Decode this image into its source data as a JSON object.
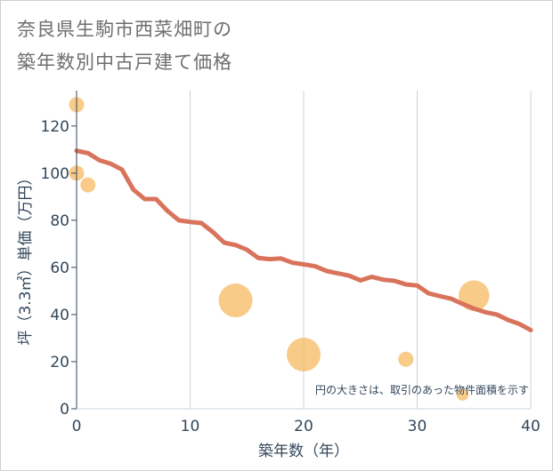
{
  "title": {
    "line1": "奈良県生駒市西菜畑町の",
    "line2": "築年数別中古戸建て価格"
  },
  "chart_data": {
    "type": "scatter",
    "xlabel": "築年数（年）",
    "ylabel": "坪（3.3㎡）単価（万円）",
    "xlim": [
      0,
      40
    ],
    "ylim": [
      0,
      135
    ],
    "xticks": [
      0,
      10,
      20,
      30,
      40
    ],
    "yticks": [
      0,
      20,
      40,
      60,
      80,
      100,
      120
    ],
    "grid": "vertical",
    "note": "円の大きさは、取引のあった物件面積を示す",
    "colors": {
      "line": "#d9735c",
      "bubble": "#f5b961",
      "grid": "#c9d4dc",
      "axis_text": "#33475b"
    },
    "trend": {
      "name": "trend",
      "x": [
        0,
        1,
        2,
        3,
        4,
        5,
        6,
        7,
        8,
        9,
        10,
        11,
        12,
        13,
        14,
        15,
        16,
        17,
        18,
        19,
        20,
        21,
        22,
        23,
        24,
        25,
        26,
        27,
        28,
        29,
        30,
        31,
        32,
        33,
        34,
        35,
        36,
        37,
        38,
        39,
        40
      ],
      "y": [
        109.5,
        108.5,
        105.5,
        104,
        101.5,
        93,
        89,
        89,
        84,
        80,
        79.3,
        78.8,
        75,
        70.5,
        69.5,
        67.5,
        64,
        63.5,
        63.8,
        62,
        61.3,
        60.5,
        58.5,
        57.5,
        56.5,
        54.5,
        56,
        54.8,
        54.3,
        52.8,
        52.3,
        49,
        47.8,
        46.7,
        44.5,
        42.5,
        41,
        40,
        37.7,
        36,
        33.4
      ]
    },
    "bubbles": [
      {
        "x": 0,
        "y": 129,
        "size": 1
      },
      {
        "x": 0,
        "y": 100,
        "size": 1
      },
      {
        "x": 1,
        "y": 95,
        "size": 1
      },
      {
        "x": 14,
        "y": 46,
        "size": 4
      },
      {
        "x": 20,
        "y": 23,
        "size": 4
      },
      {
        "x": 29,
        "y": 21,
        "size": 1
      },
      {
        "x": 34,
        "y": 6,
        "size": 0.5
      },
      {
        "x": 35,
        "y": 48,
        "size": 3.5
      }
    ]
  }
}
